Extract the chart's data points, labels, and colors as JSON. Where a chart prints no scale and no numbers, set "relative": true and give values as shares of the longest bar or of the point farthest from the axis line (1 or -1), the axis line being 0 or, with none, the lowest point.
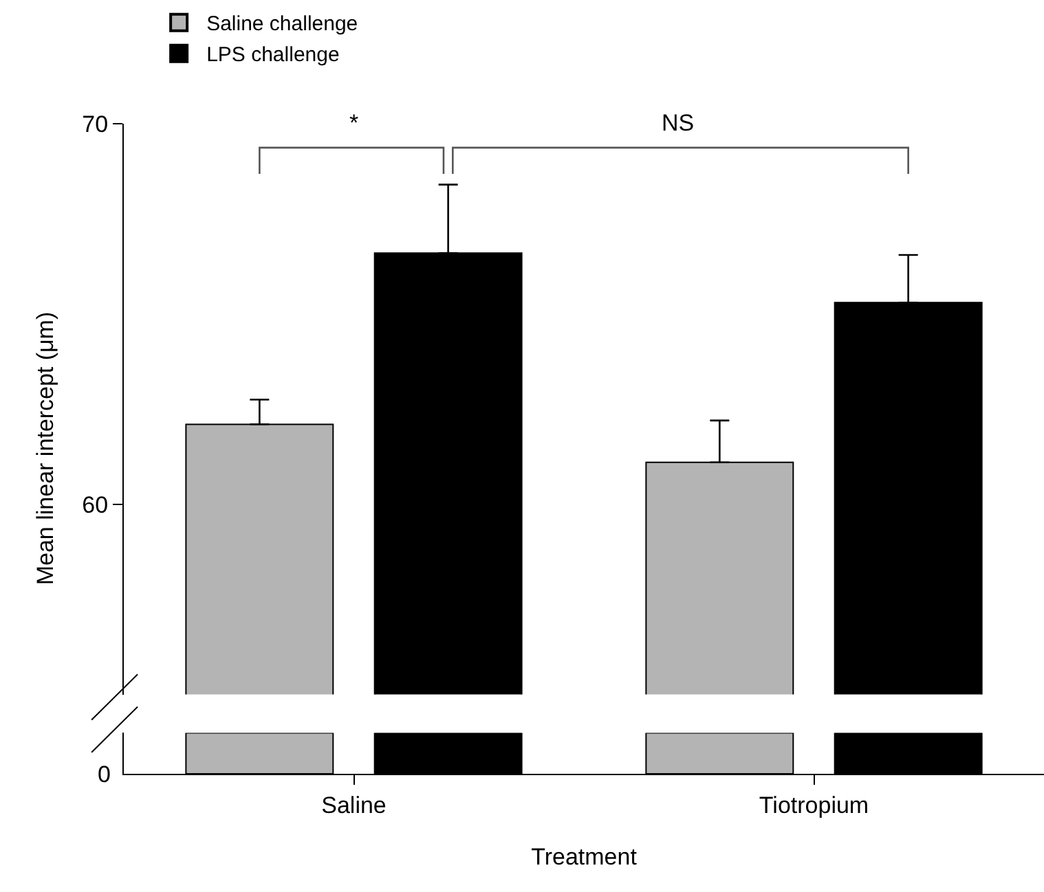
{
  "chart_data": [
    {
      "type": "bar",
      "ylabel": "Mean linear intercept (μm)",
      "categories": [
        null,
        null
      ],
      "ylim": [
        55,
        70
      ],
      "yticks": [
        60,
        70
      ],
      "tick_labels": "y",
      "legend": "top left",
      "series": [
        {
          "name": "Saline challenge",
          "color": "#b4b4b4",
          "values": [
            62.1,
            61.1
          ],
          "errors": [
            0.65,
            1.1
          ]
        },
        {
          "name": "LPS challenge",
          "color": "#000000",
          "values": [
            66.6,
            65.3
          ],
          "errors": [
            1.8,
            1.25
          ]
        }
      ],
      "annotations": [
        "*",
        "NS"
      ]
    },
    {
      "type": "bar",
      "xlabel": "Treatment",
      "categories": [
        "Saline",
        "Tiotropium"
      ],
      "relative": true,
      "tick_labels": "x",
      "series": [
        {
          "color": "#b4b4b4",
          "values": [
            1,
            1
          ]
        },
        {
          "color": "#000000",
          "values": [
            1,
            1
          ]
        }
      ],
      "annotations": [
        "0"
      ]
    }
  ]
}
